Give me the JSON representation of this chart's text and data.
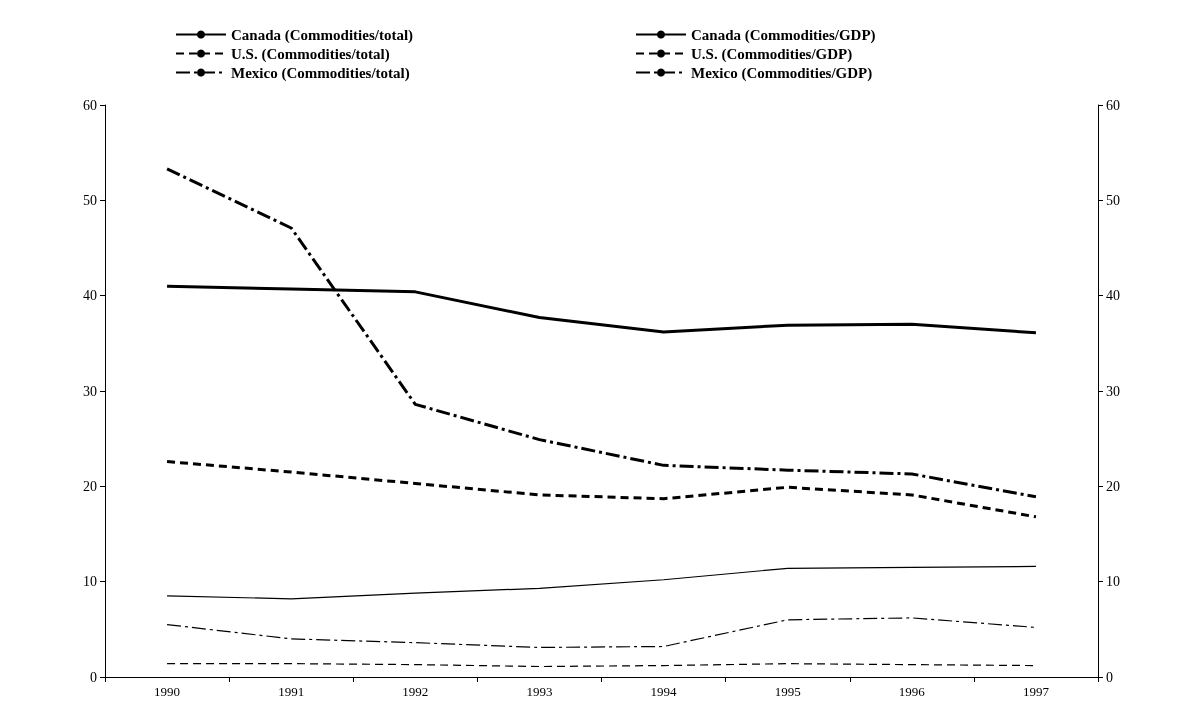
{
  "chart_data": {
    "type": "line",
    "categories": [
      "1990",
      "1991",
      "1992",
      "1993",
      "1994",
      "1995",
      "1996",
      "1997"
    ],
    "series": [
      {
        "name": "Canada (Commodities/total)",
        "color": "#000000",
        "line_style": "solid",
        "values": [
          41.0,
          40.7,
          40.4,
          37.7,
          36.2,
          36.9,
          37.0,
          36.1
        ]
      },
      {
        "name": "U.S. (Commodities/total)",
        "color": "#000000",
        "line_style": "dashed",
        "values": [
          22.6,
          21.5,
          20.3,
          19.1,
          18.7,
          19.9,
          19.1,
          16.8
        ]
      },
      {
        "name": "Mexico (Commodities/total)",
        "color": "#000000",
        "line_style": "dashdot",
        "values": [
          53.3,
          47.1,
          28.6,
          24.9,
          22.2,
          21.7,
          21.3,
          18.9
        ]
      },
      {
        "name": "Canada (Commodities/GDP)",
        "color": "#000000",
        "line_style": "solid",
        "values": [
          8.5,
          8.2,
          8.8,
          9.3,
          10.2,
          11.4,
          11.5,
          11.6
        ]
      },
      {
        "name": "U.S. (Commodities/GDP)",
        "color": "#000000",
        "line_style": "dashed",
        "values": [
          1.4,
          1.4,
          1.3,
          1.1,
          1.2,
          1.4,
          1.3,
          1.2
        ]
      },
      {
        "name": "Mexico (Commodities/GDP)",
        "color": "#000000",
        "line_style": "dashdot",
        "values": [
          5.5,
          4.0,
          3.6,
          3.1,
          3.2,
          6.0,
          6.2,
          5.2
        ]
      }
    ],
    "ylim": [
      0,
      60
    ],
    "yticks": [
      0,
      10,
      20,
      30,
      40,
      50,
      60
    ],
    "y2lim": [
      0,
      60
    ],
    "y2ticks": [
      0,
      10,
      20,
      30,
      40,
      50,
      60
    ],
    "grid": false,
    "legend": "top",
    "marker": "none"
  }
}
